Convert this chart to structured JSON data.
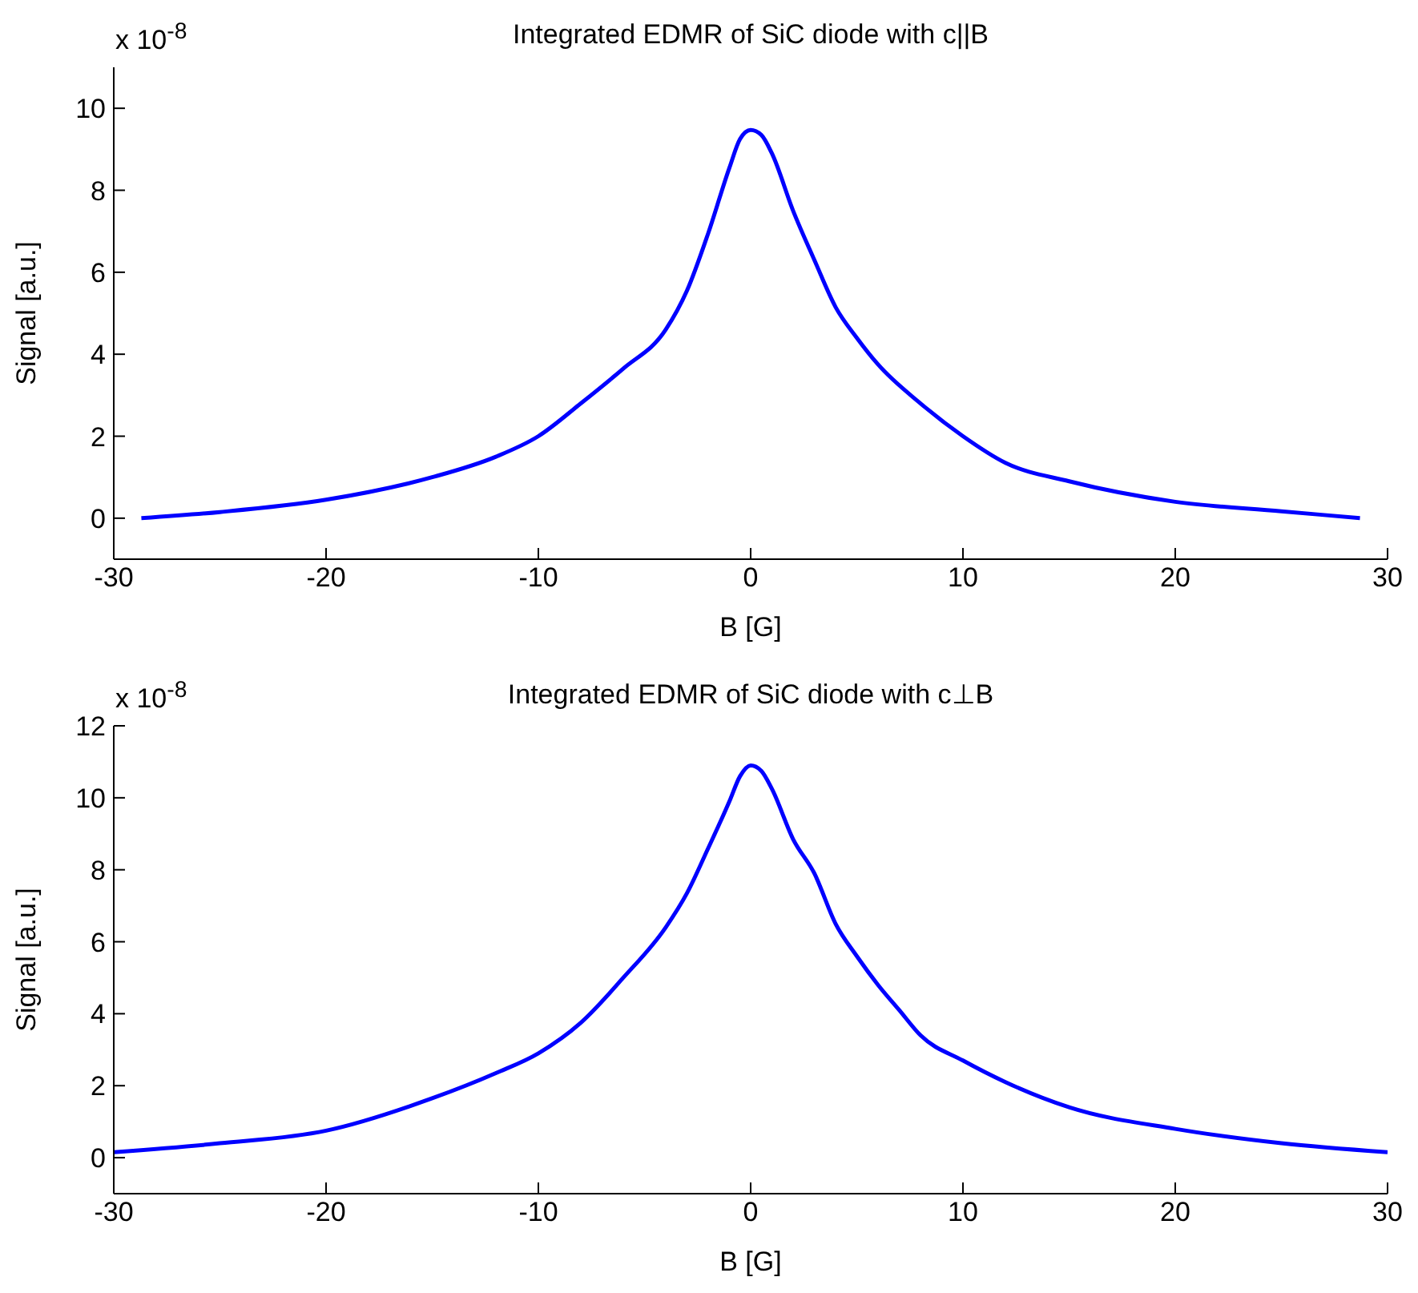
{
  "chart_data": [
    {
      "type": "line",
      "title": "Integrated EDMR of SiC diode with c||B",
      "xlabel": "B [G]",
      "ylabel": "Signal [a.u.]",
      "annotations": [
        "x 10$^{-8}$"
      ],
      "xlim": [
        -30,
        30
      ],
      "xticks": [
        -30,
        -20,
        -10,
        0,
        10,
        20,
        30
      ],
      "ylim": [
        -1,
        11
      ],
      "yticks": [
        0,
        2,
        4,
        6,
        8,
        10
      ],
      "grid": false,
      "legend": false,
      "marker": "none",
      "line_style": "solid",
      "series": [
        {
          "color": "#0000ff",
          "x": [
            -28.7,
            -25,
            -20,
            -15,
            -12,
            -10,
            -8,
            -6,
            -4,
            -3,
            -2,
            -1,
            -0.5,
            0,
            0.5,
            1,
            2,
            3,
            4,
            5,
            6,
            8,
            10,
            12,
            15,
            20,
            25,
            28.7
          ],
          "values": [
            0.0,
            0.15,
            0.45,
            1.0,
            1.5,
            2.0,
            2.8,
            3.65,
            4.6,
            5.55,
            6.95,
            8.55,
            9.25,
            9.47,
            9.35,
            8.9,
            7.5,
            6.3,
            5.15,
            4.4,
            3.75,
            2.8,
            2.0,
            1.35,
            0.9,
            0.4,
            0.17,
            0.0
          ]
        }
      ]
    },
    {
      "type": "line",
      "title": "Integrated EDMR of SiC diode with c⊥B",
      "xlabel": "B [G]",
      "ylabel": "Signal [a.u.]",
      "annotations": [
        "x 10$^{-8}$"
      ],
      "xlim": [
        -30,
        30
      ],
      "xticks": [
        -30,
        -20,
        -10,
        0,
        10,
        20,
        30
      ],
      "ylim": [
        -1,
        12
      ],
      "yticks": [
        0,
        2,
        4,
        6,
        8,
        10,
        12
      ],
      "grid": false,
      "legend": false,
      "marker": "none",
      "line_style": "solid",
      "series": [
        {
          "color": "#0000ff",
          "x": [
            -30,
            -25,
            -20,
            -15,
            -12,
            -10,
            -8,
            -6,
            -4,
            -3,
            -2,
            -1,
            -0.5,
            0,
            0.5,
            1,
            2,
            3,
            4,
            5,
            6,
            7,
            8,
            10,
            12,
            15,
            20,
            25,
            30
          ],
          "values": [
            0.15,
            0.4,
            0.75,
            1.65,
            2.35,
            2.9,
            3.75,
            5.0,
            6.4,
            7.35,
            8.6,
            9.9,
            10.6,
            10.9,
            10.75,
            10.25,
            8.85,
            7.9,
            6.5,
            5.6,
            4.8,
            4.1,
            3.4,
            2.7,
            2.1,
            1.4,
            0.8,
            0.4,
            0.15
          ]
        }
      ]
    }
  ]
}
